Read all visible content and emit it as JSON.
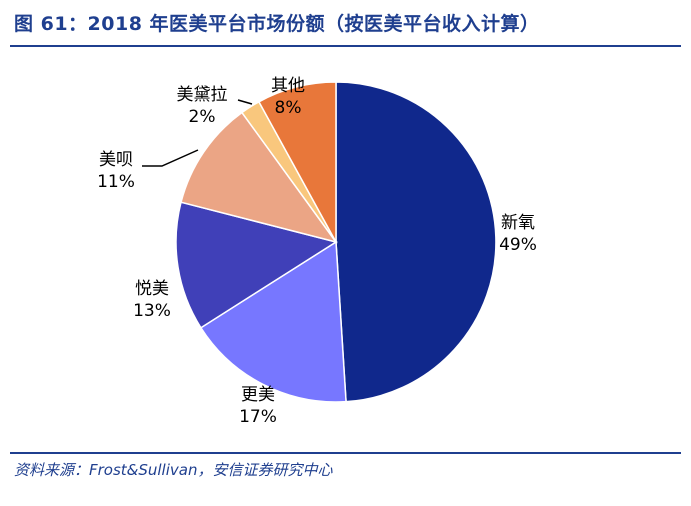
{
  "title": "图 61：2018 年医美平台市场份额（按医美平台收入计算）",
  "source": "资料来源：Frost&Sullivan，安信证券研究中心",
  "chart_data": {
    "type": "pie",
    "start_angle_deg": 0,
    "direction": "clockwise",
    "slices": [
      {
        "label": "新氧",
        "value": 49,
        "value_label": "49%",
        "color": "#10288c"
      },
      {
        "label": "更美",
        "value": 17,
        "value_label": "17%",
        "color": "#7777ff"
      },
      {
        "label": "悦美",
        "value": 13,
        "value_label": "13%",
        "color": "#4040b8"
      },
      {
        "label": "美呗",
        "value": 11,
        "value_label": "11%",
        "color": "#eba585"
      },
      {
        "label": "美黛拉",
        "value": 2,
        "value_label": "2%",
        "color": "#f9c77d"
      },
      {
        "label": "其他",
        "value": 8,
        "value_label": "8%",
        "color": "#e8773a"
      }
    ]
  }
}
